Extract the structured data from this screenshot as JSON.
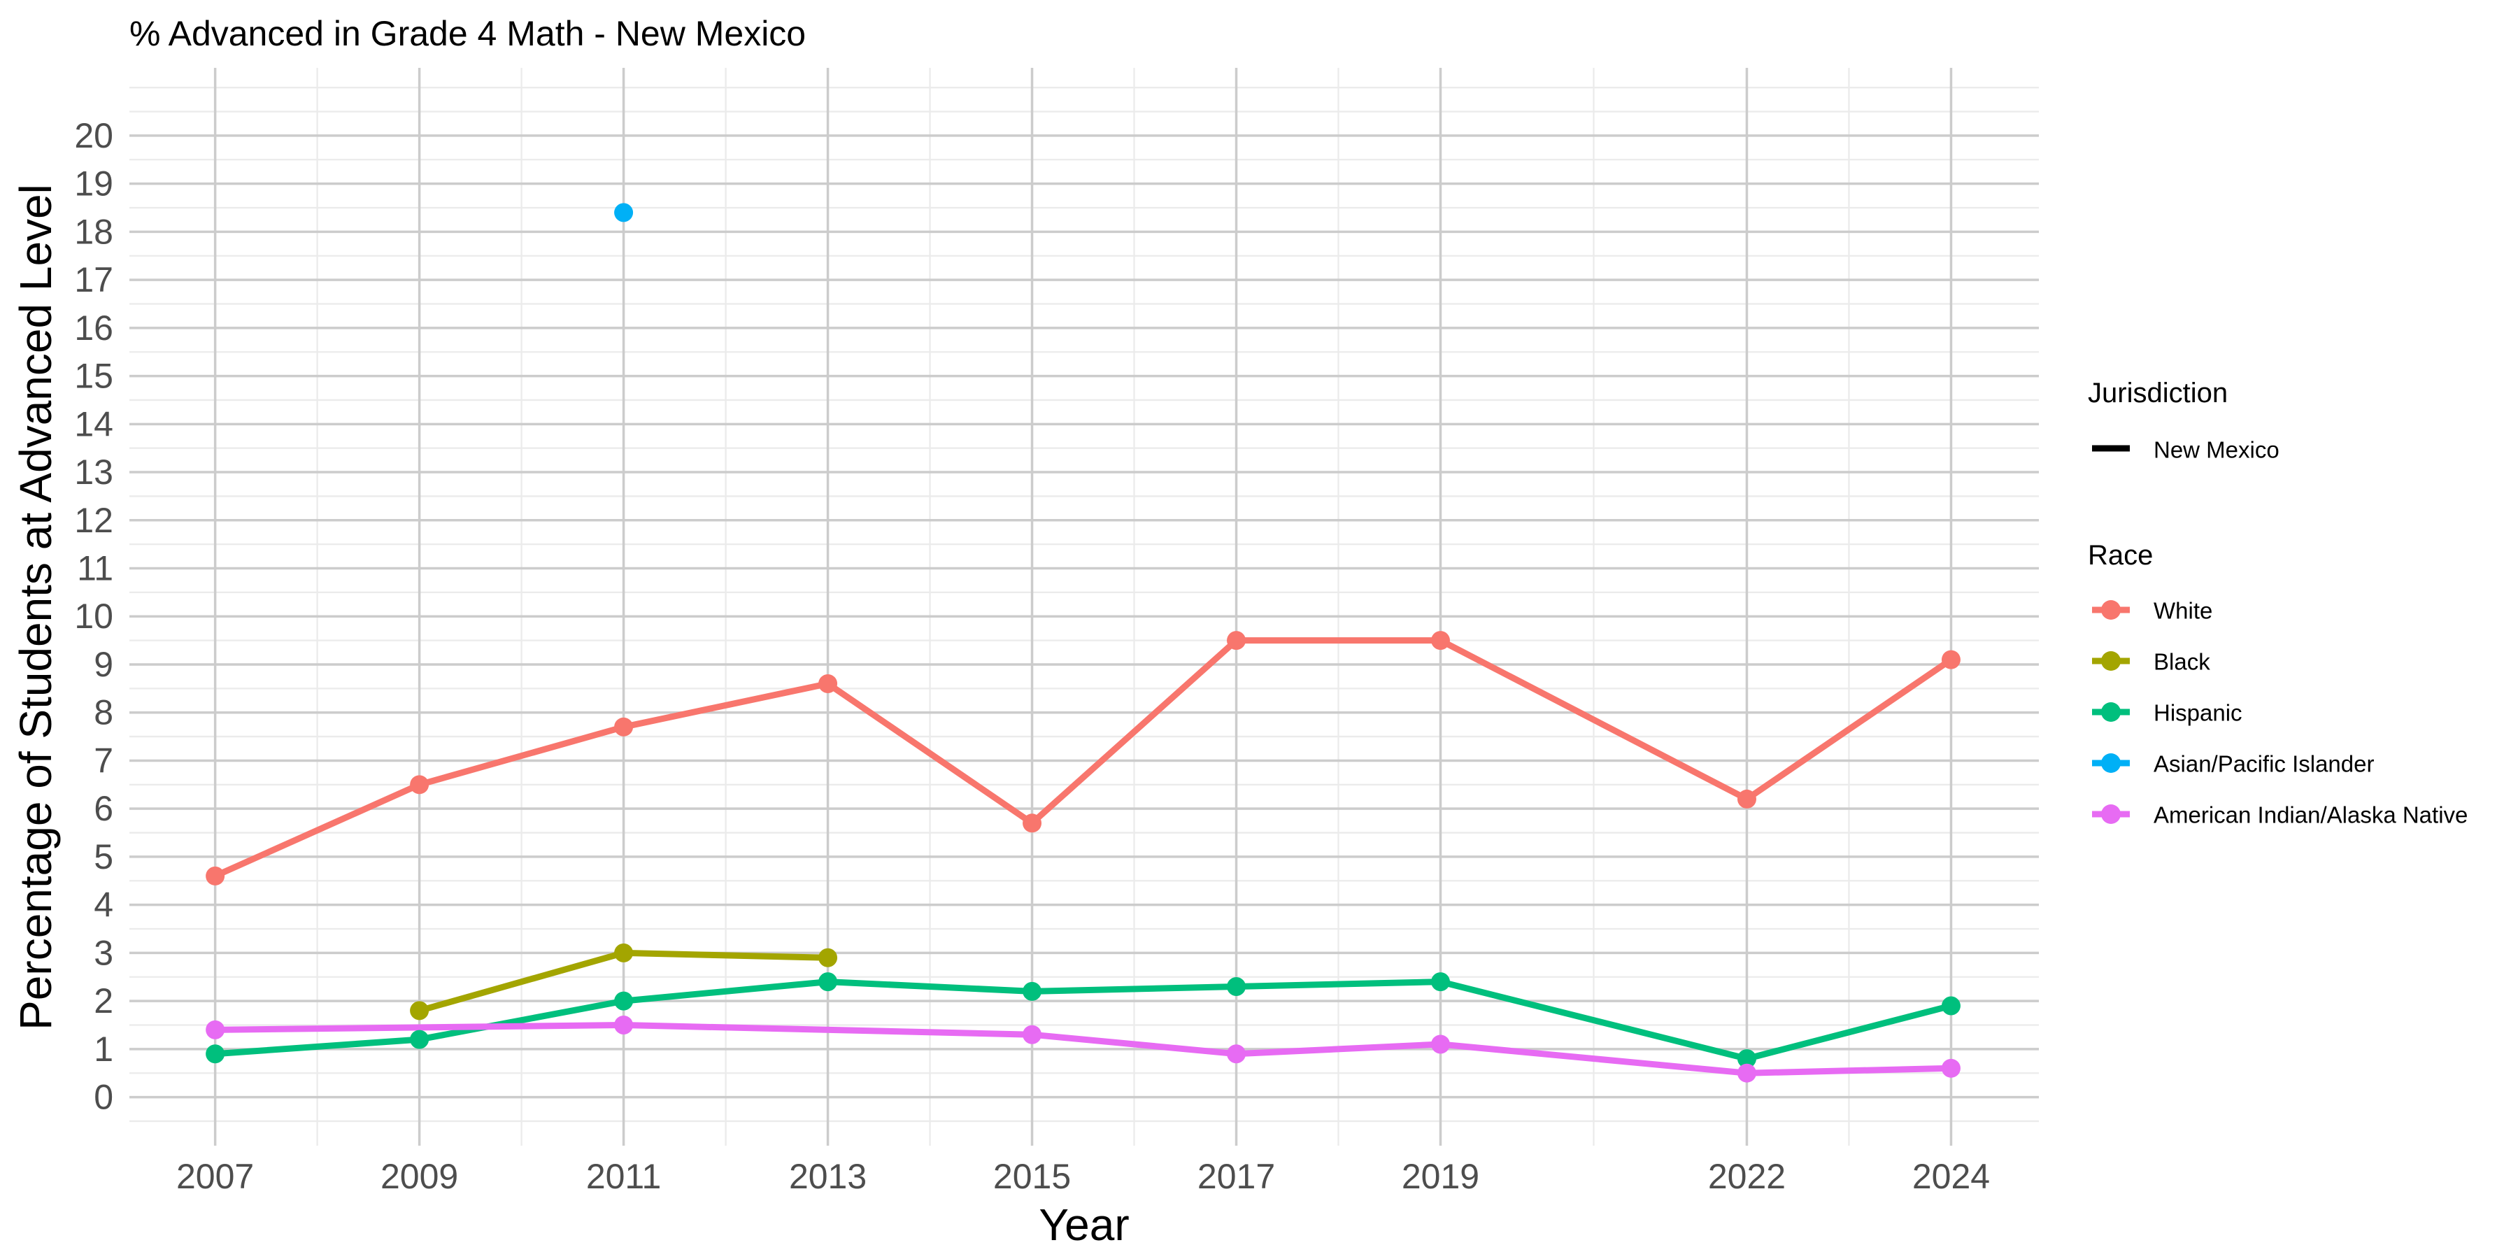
{
  "chart_data": {
    "type": "line",
    "title": "% Advanced in Grade 4 Math - New Mexico",
    "xlabel": "Year",
    "ylabel": "Percentage of Students at Advanced Level",
    "x_ticks": [
      "2007",
      "2009",
      "2011",
      "2013",
      "2015",
      "2017",
      "2019",
      "2022",
      "2024"
    ],
    "y_ticks": [
      "0",
      "1",
      "2",
      "3",
      "4",
      "5",
      "6",
      "7",
      "8",
      "9",
      "10",
      "11",
      "12",
      "13",
      "14",
      "15",
      "16",
      "17",
      "18",
      "19",
      "20"
    ],
    "xlim": [
      2006.16,
      2024.86
    ],
    "ylim": [
      -1.01,
      21.41
    ],
    "grid": true,
    "legend_position": "right",
    "jurisdiction_legend": {
      "title": "Jurisdiction",
      "label": "New Mexico",
      "color": "#000000"
    },
    "race_legend": {
      "title": "Race"
    },
    "series": [
      {
        "name": "White",
        "color": "#F8766D",
        "points": [
          {
            "x": 2007,
            "y": 4.6
          },
          {
            "x": 2009,
            "y": 6.5
          },
          {
            "x": 2011,
            "y": 7.7
          },
          {
            "x": 2013,
            "y": 8.6
          },
          {
            "x": 2015,
            "y": 5.7
          },
          {
            "x": 2017,
            "y": 9.5
          },
          {
            "x": 2019,
            "y": 9.5
          },
          {
            "x": 2022,
            "y": 6.2
          },
          {
            "x": 2024,
            "y": 9.1
          }
        ]
      },
      {
        "name": "Black",
        "color": "#A3A500",
        "points": [
          {
            "x": 2009,
            "y": 1.8
          },
          {
            "x": 2011,
            "y": 3.0
          },
          {
            "x": 2013,
            "y": 2.9
          }
        ]
      },
      {
        "name": "Hispanic",
        "color": "#00BF7D",
        "points": [
          {
            "x": 2007,
            "y": 0.9
          },
          {
            "x": 2009,
            "y": 1.2
          },
          {
            "x": 2011,
            "y": 2.0
          },
          {
            "x": 2013,
            "y": 2.4
          },
          {
            "x": 2015,
            "y": 2.2
          },
          {
            "x": 2017,
            "y": 2.3
          },
          {
            "x": 2019,
            "y": 2.4
          },
          {
            "x": 2022,
            "y": 0.8
          },
          {
            "x": 2024,
            "y": 1.9
          }
        ]
      },
      {
        "name": "Asian/Pacific Islander",
        "color": "#00B0F6",
        "points": [
          {
            "x": 2011,
            "y": 18.4
          }
        ]
      },
      {
        "name": "American Indian/Alaska Native",
        "color": "#E76BF3",
        "points": [
          {
            "x": 2007,
            "y": 1.4
          },
          {
            "x": 2011,
            "y": 1.5
          },
          {
            "x": 2015,
            "y": 1.3
          },
          {
            "x": 2017,
            "y": 0.9
          },
          {
            "x": 2019,
            "y": 1.1
          },
          {
            "x": 2022,
            "y": 0.5
          },
          {
            "x": 2024,
            "y": 0.6
          }
        ]
      }
    ]
  }
}
